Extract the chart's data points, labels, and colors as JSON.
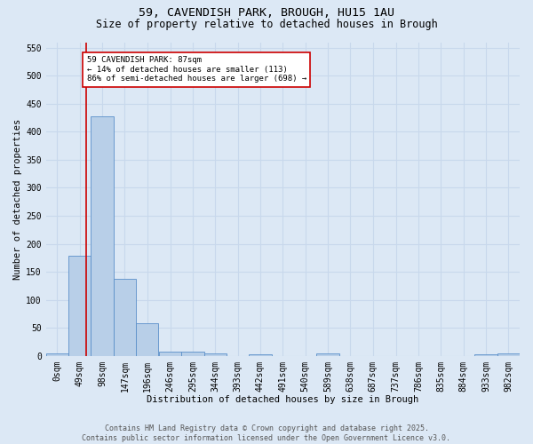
{
  "title_line1": "59, CAVENDISH PARK, BROUGH, HU15 1AU",
  "title_line2": "Size of property relative to detached houses in Brough",
  "xlabel": "Distribution of detached houses by size in Brough",
  "ylabel": "Number of detached properties",
  "footnote1": "Contains HM Land Registry data © Crown copyright and database right 2025.",
  "footnote2": "Contains public sector information licensed under the Open Government Licence v3.0.",
  "bin_labels": [
    "0sqm",
    "49sqm",
    "98sqm",
    "147sqm",
    "196sqm",
    "246sqm",
    "295sqm",
    "344sqm",
    "393sqm",
    "442sqm",
    "491sqm",
    "540sqm",
    "589sqm",
    "638sqm",
    "687sqm",
    "737sqm",
    "786sqm",
    "835sqm",
    "884sqm",
    "933sqm",
    "982sqm"
  ],
  "bin_edges": [
    0,
    49,
    98,
    147,
    196,
    246,
    295,
    344,
    393,
    442,
    491,
    540,
    589,
    638,
    687,
    737,
    786,
    835,
    884,
    933,
    982
  ],
  "bar_heights": [
    5,
    178,
    428,
    137,
    58,
    8,
    8,
    5,
    0,
    3,
    0,
    0,
    4,
    0,
    0,
    0,
    0,
    0,
    0,
    3,
    4
  ],
  "bar_color": "#b8cfe8",
  "bar_edge_color": "#5b8fc9",
  "grid_color": "#c8d8ec",
  "background_color": "#dce8f5",
  "red_line_x": 87,
  "ylim": [
    0,
    560
  ],
  "yticks": [
    0,
    50,
    100,
    150,
    200,
    250,
    300,
    350,
    400,
    450,
    500,
    550
  ],
  "annotation_text": "59 CAVENDISH PARK: 87sqm\n← 14% of detached houses are smaller (113)\n86% of semi-detached houses are larger (698) →",
  "annotation_box_color": "#ffffff",
  "annotation_border_color": "#cc0000",
  "red_line_color": "#cc0000",
  "bin_width": 49,
  "title_fontsize": 9.5,
  "subtitle_fontsize": 8.5,
  "axis_label_fontsize": 7.5,
  "tick_fontsize": 7,
  "annot_fontsize": 6.5,
  "footnote_fontsize": 6
}
